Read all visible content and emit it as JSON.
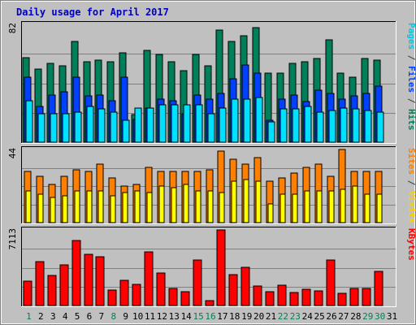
{
  "chart_data": {
    "type": "bar",
    "title": "Daily usage for April 2017",
    "days": [
      "1",
      "2",
      "3",
      "4",
      "5",
      "6",
      "7",
      "8",
      "9",
      "10",
      "11",
      "12",
      "13",
      "14",
      "15",
      "16",
      "17",
      "18",
      "19",
      "20",
      "21",
      "22",
      "23",
      "24",
      "25",
      "26",
      "27",
      "28",
      "29",
      "30",
      "31"
    ],
    "weekend_days": [
      "1",
      "8",
      "15",
      "16",
      "22",
      "23",
      "29",
      "30"
    ],
    "panels": [
      {
        "id": "hits-files-pages",
        "max_label": "82",
        "ymax": 82,
        "right_label": [
          {
            "text": "Pages",
            "color": "#00c8e6"
          },
          {
            "text": " / ",
            "color": "#3c3c3c"
          },
          {
            "text": "Files",
            "color": "#0040ff"
          },
          {
            "text": " / ",
            "color": "#3c3c3c"
          },
          {
            "text": "Hits",
            "color": "#00805a"
          }
        ],
        "series": [
          {
            "name": "Hits",
            "color": "#00805a",
            "values": [
              59,
              51,
              55,
              53,
              70,
              56,
              57,
              56,
              62,
              19,
              64,
              61,
              56,
              50,
              61,
              53,
              78,
              70,
              74,
              80,
              48,
              48,
              55,
              56,
              58,
              71,
              48,
              45,
              58,
              57
            ]
          },
          {
            "name": "Files",
            "color": "#0040ff",
            "values": [
              45,
              25,
              33,
              35,
              45,
              32,
              33,
              29,
              45,
              16,
              24,
              30,
              29,
              20,
              33,
              30,
              34,
              44,
              54,
              48,
              15,
              30,
              33,
              28,
              36,
              34,
              30,
              32,
              34,
              39
            ]
          },
          {
            "name": "Pages",
            "color": "#00e0ff",
            "values": [
              29,
              20,
              20,
              20,
              21,
              25,
              23,
              21,
              15,
              24,
              24,
              26,
              26,
              26,
              26,
              20,
              24,
              30,
              30,
              31,
              14,
              23,
              23,
              25,
              21,
              22,
              24,
              23,
              22,
              21
            ]
          }
        ]
      },
      {
        "id": "visits-sites",
        "max_label": "44",
        "ymax": 44,
        "right_label": [
          {
            "text": "Sites",
            "color": "#ff8000"
          },
          {
            "text": " / ",
            "color": "#3c3c3c"
          },
          {
            "text": "Visits",
            "color": "#ffd000"
          }
        ],
        "series": [
          {
            "name": "Visits",
            "color": "#ff8000",
            "values": [
              31,
              28,
              23,
              28,
              32,
              31,
              35,
              27,
              22,
              23,
              33,
              31,
              31,
              31,
              31,
              32,
              43,
              38,
              35,
              39,
              25,
              27,
              30,
              33,
              35,
              28,
              44,
              31,
              31,
              31
            ]
          },
          {
            "name": "Sites",
            "color": "#ffff00",
            "values": [
              19,
              17,
              15,
              16,
              19,
              19,
              19,
              16,
              18,
              19,
              18,
              22,
              21,
              23,
              19,
              19,
              18,
              25,
              26,
              25,
              11,
              17,
              17,
              19,
              19,
              19,
              20,
              22,
              17,
              17
            ]
          }
        ]
      },
      {
        "id": "kbytes",
        "max_label": "7113",
        "ymax": 7113,
        "right_label": [
          {
            "text": "KBytes",
            "color": "#ff0000"
          }
        ],
        "series": [
          {
            "name": "KBytes",
            "color": "#ff0000",
            "values": [
              2300,
              4120,
              2840,
              3850,
              6120,
              4800,
              4620,
              1440,
              2350,
              2000,
              5040,
              3040,
              1600,
              1320,
              4300,
              430,
              7113,
              2940,
              3580,
              1850,
              1280,
              1950,
              1200,
              1530,
              1340,
              4300,
              1120,
              1600,
              1640,
              3200
            ]
          }
        ]
      }
    ]
  }
}
